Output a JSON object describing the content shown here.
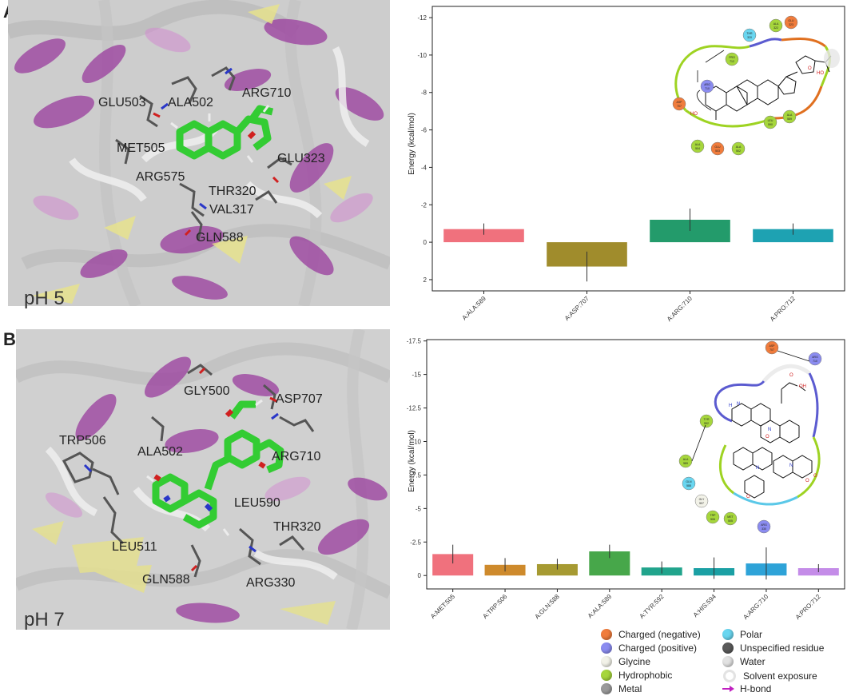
{
  "panels": {
    "a": {
      "letter": "A",
      "ph_label": "pH 5",
      "residue_labels": [
        "GLU503",
        "ALA502",
        "ARG710",
        "MET505",
        "GLU323",
        "ARG575",
        "THR320",
        "VAL317",
        "GLN588"
      ]
    },
    "b": {
      "letter": "B",
      "ph_label": "pH 7",
      "residue_labels": [
        "GLY500",
        "ASP707",
        "TRP506",
        "ALA502",
        "ARG710",
        "LEU590",
        "LEU511",
        "THR320",
        "GLN588",
        "ARG330"
      ]
    }
  },
  "chart_data": [
    {
      "type": "bar",
      "ylabel": "Energy (kcal/mol)",
      "y_axis_inverted": true,
      "ylim": [
        2.6,
        -12.6
      ],
      "yticks": [
        2,
        0,
        -2,
        -4,
        -6,
        -8,
        -10,
        -12
      ],
      "categories": [
        "A:ALA:589",
        "A:ASP:707",
        "A:ARG:710",
        "A:PRO:712"
      ],
      "values": [
        -0.7,
        1.3,
        -1.2,
        -0.7
      ],
      "errors": [
        0.3,
        0.8,
        0.6,
        0.3
      ],
      "colors": [
        "#f0717d",
        "#a08c2c",
        "#239b6b",
        "#1ea2b2"
      ]
    },
    {
      "type": "bar",
      "ylabel": "Energy (kcal/mol)",
      "y_axis_inverted": true,
      "ylim": [
        1.0,
        -17.6
      ],
      "yticks": [
        0.0,
        -2.5,
        -5.0,
        -7.5,
        -10.0,
        -12.5,
        -15.0,
        -17.5
      ],
      "categories": [
        "A:MET:505",
        "A:TRP:506",
        "A:GLN:588",
        "A:ALA:589",
        "A:TYR:592",
        "A:HIS:594",
        "A:ARG:710",
        "A:PRO:712"
      ],
      "values": [
        -1.6,
        -0.8,
        -0.85,
        -1.8,
        -0.6,
        -0.55,
        -0.9,
        -0.55
      ],
      "errors": [
        0.7,
        0.5,
        0.4,
        0.5,
        0.45,
        0.8,
        1.2,
        0.3
      ],
      "colors": [
        "#f0717d",
        "#ce8a2c",
        "#a69a32",
        "#47a74a",
        "#21a48c",
        "#1ba0a4",
        "#2ea3d8",
        "#c48ce8"
      ]
    }
  ],
  "interaction_legend": {
    "items": [
      {
        "label": "Charged (negative)",
        "color": "#f07c3c",
        "kind": "dot"
      },
      {
        "label": "Charged (positive)",
        "color": "#8b8cf0",
        "kind": "dot"
      },
      {
        "label": "Glycine",
        "color": "#f2f2e8",
        "kind": "dot"
      },
      {
        "label": "Hydrophobic",
        "color": "#a6d63c",
        "kind": "dot"
      },
      {
        "label": "Metal",
        "color": "#9a9a9a",
        "kind": "dot"
      },
      {
        "label": "Polar",
        "color": "#69d6f0",
        "kind": "dot"
      },
      {
        "label": "Unspecified residue",
        "color": "#5a5a5a",
        "kind": "dot"
      },
      {
        "label": "Water",
        "color": "#e2e2e2",
        "kind": "dot"
      },
      {
        "label": "Solvent exposure",
        "color": "#e3e3e3",
        "kind": "ring"
      },
      {
        "label": "H-bond",
        "color": "#c020c0",
        "kind": "arrow"
      }
    ]
  },
  "interaction_diagram_a": {
    "residues": [
      {
        "name": "GLU",
        "num": "323",
        "color": "#f07c3c"
      },
      {
        "name": "ALA",
        "num": "322",
        "color": "#a6d63c"
      },
      {
        "name": "THR",
        "num": "320",
        "color": "#69d6f0"
      },
      {
        "name": "PRO",
        "num": "712",
        "color": "#a6d63c"
      },
      {
        "name": "ARG",
        "num": "710",
        "color": "#8b8cf0"
      },
      {
        "name": "ASP",
        "num": "707",
        "color": "#f07c3c"
      },
      {
        "name": "ALA",
        "num": "589",
        "color": "#a6d63c"
      },
      {
        "name": "LEU",
        "num": "590",
        "color": "#a6d63c"
      },
      {
        "name": "ALA",
        "num": "504",
        "color": "#a6d63c"
      },
      {
        "name": "GLU",
        "num": "503",
        "color": "#f07c3c"
      },
      {
        "name": "ALA",
        "num": "502",
        "color": "#a6d63c"
      }
    ],
    "atoms": [
      "HO",
      "O",
      "HO"
    ]
  },
  "interaction_diagram_b": {
    "residues": [
      {
        "name": "ASP",
        "num": "707",
        "color": "#f07c3c"
      },
      {
        "name": "ARG",
        "num": "710",
        "color": "#8b8cf0"
      },
      {
        "name": "TYR",
        "num": "592",
        "color": "#a6d63c"
      },
      {
        "name": "ALA",
        "num": "589",
        "color": "#a6d63c"
      },
      {
        "name": "GLN",
        "num": "588",
        "color": "#69d6f0"
      },
      {
        "name": "GLY",
        "num": "507",
        "color": "#f2f2e8"
      },
      {
        "name": "TRP",
        "num": "506",
        "color": "#a6d63c"
      },
      {
        "name": "MET",
        "num": "505",
        "color": "#a6d63c"
      },
      {
        "name": "ARG",
        "num": "330",
        "color": "#8b8cf0"
      }
    ],
    "atoms": [
      "OH",
      "H",
      "N",
      "O",
      "N",
      "N",
      "O",
      "O",
      "O",
      "N",
      "O"
    ]
  }
}
